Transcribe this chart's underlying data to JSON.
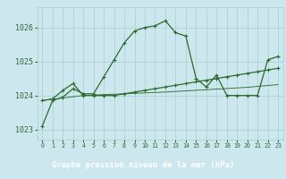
{
  "title": "Graphe pression niveau de la mer (hPa)",
  "bg_color": "#cce8ee",
  "plot_bg": "#cce8ee",
  "grid_color": "#aacccc",
  "line_color": "#2d6a2d",
  "xlabel_bg": "#2d5a2d",
  "xlabel_fg": "#ffffff",
  "xlim": [
    -0.5,
    23.5
  ],
  "ylim": [
    1022.7,
    1026.6
  ],
  "yticks": [
    1023,
    1024,
    1025,
    1026
  ],
  "xticks": [
    0,
    1,
    2,
    3,
    4,
    5,
    6,
    7,
    8,
    9,
    10,
    11,
    12,
    13,
    14,
    15,
    16,
    17,
    18,
    19,
    20,
    21,
    22,
    23
  ],
  "series1_x": [
    0,
    1,
    2,
    3,
    4,
    5,
    6,
    7,
    8,
    9,
    10,
    11,
    12,
    13,
    14,
    15,
    16,
    17,
    18,
    19,
    20,
    21,
    22,
    23
  ],
  "series1_y": [
    1023.1,
    1023.85,
    1023.95,
    1024.2,
    1024.05,
    1024.05,
    1024.55,
    1025.05,
    1025.55,
    1025.9,
    1026.0,
    1026.05,
    1026.2,
    1025.85,
    1025.75,
    1024.5,
    1024.25,
    1024.6,
    1024.0,
    1024.0,
    1024.0,
    1024.0,
    1025.05,
    1025.15
  ],
  "series2_x": [
    0,
    1,
    2,
    3,
    4,
    5,
    6,
    7,
    8,
    9,
    10,
    11,
    12,
    13,
    14,
    15,
    16,
    17,
    18,
    19,
    20,
    21,
    22,
    23
  ],
  "series2_y": [
    1023.85,
    1023.9,
    1024.15,
    1024.35,
    1024.0,
    1024.0,
    1024.0,
    1024.0,
    1024.05,
    1024.1,
    1024.15,
    1024.2,
    1024.25,
    1024.3,
    1024.35,
    1024.4,
    1024.45,
    1024.5,
    1024.55,
    1024.6,
    1024.65,
    1024.7,
    1024.75,
    1024.8
  ],
  "series3_x": [
    0,
    4,
    12,
    20,
    23
  ],
  "series3_y": [
    1023.85,
    1024.0,
    1024.1,
    1024.24,
    1024.32
  ],
  "tick_color": "#336633",
  "tick_fontsize": 6,
  "title_fontsize": 6.5,
  "lw": 0.9,
  "marker_size": 3.5
}
